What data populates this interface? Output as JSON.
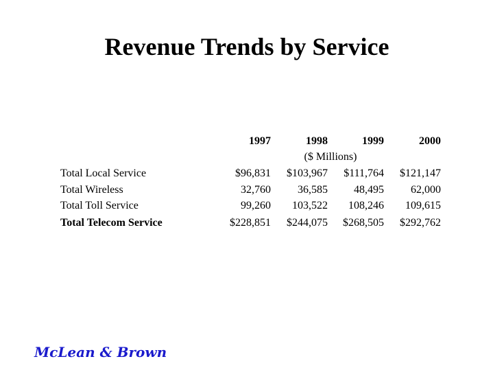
{
  "header": {
    "title": "Revenue Trends by Service"
  },
  "table": {
    "columns": [
      "1997",
      "1998",
      "1999",
      "2000"
    ],
    "unit_note": "($ Millions)",
    "rows": [
      [
        "Total Local Service",
        "$96,831",
        "$103,967",
        "$111,764",
        "$121,147"
      ],
      [
        "Total Wireless",
        "32,760",
        "36,585",
        "48,495",
        "62,000"
      ],
      [
        "Total Toll Service",
        "99,260",
        "103,522",
        "108,246",
        "109,615"
      ],
      [
        "Total Telecom Service",
        "$228,851",
        "$244,075",
        "$268,505",
        "$292,762"
      ]
    ]
  },
  "footer": {
    "logo": "McLean & Brown"
  }
}
